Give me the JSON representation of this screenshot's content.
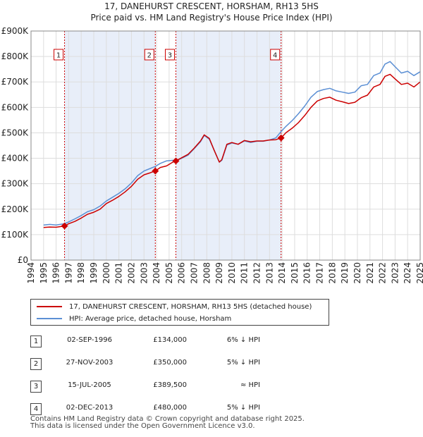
{
  "title_line1": "17, DANEHURST CRESCENT, HORSHAM, RH13 5HS",
  "title_line2": "Price paid vs. HM Land Registry's House Price Index (HPI)",
  "colors": {
    "property": "#cc0000",
    "hpi": "#5b8fd4",
    "shade": "#e8eef9",
    "marker": "#cc0000"
  },
  "chart_data": {
    "type": "line",
    "xlim": [
      1994,
      2025
    ],
    "ylim": [
      0,
      900000
    ],
    "y_ticks": [
      {
        "value": 0,
        "label": "£0"
      },
      {
        "value": 100000,
        "label": "£100K"
      },
      {
        "value": 200000,
        "label": "£200K"
      },
      {
        "value": 300000,
        "label": "£300K"
      },
      {
        "value": 400000,
        "label": "£400K"
      },
      {
        "value": 500000,
        "label": "£500K"
      },
      {
        "value": 600000,
        "label": "£600K"
      },
      {
        "value": 700000,
        "label": "£700K"
      },
      {
        "value": 800000,
        "label": "£800K"
      },
      {
        "value": 900000,
        "label": "£900K"
      }
    ],
    "x_ticks": [
      "1994",
      "1995",
      "1996",
      "1997",
      "1998",
      "1999",
      "2000",
      "2001",
      "2002",
      "2003",
      "2004",
      "2005",
      "2006",
      "2007",
      "2008",
      "2009",
      "2010",
      "2011",
      "2012",
      "2013",
      "2014",
      "2015",
      "2016",
      "2017",
      "2018",
      "2019",
      "2020",
      "2021",
      "2022",
      "2023",
      "2024",
      "2025"
    ],
    "shaded_periods": [
      [
        1996.67,
        2003.9
      ],
      [
        2005.54,
        2013.92
      ]
    ],
    "series": [
      {
        "name": "17, DANEHURST CRESCENT, HORSHAM, RH13 5HS (detached house)",
        "x": [
          1995.0,
          1995.5,
          1996.0,
          1996.67,
          1997.0,
          1997.5,
          1998.0,
          1998.5,
          1999.0,
          1999.5,
          2000.0,
          2000.5,
          2001.0,
          2001.5,
          2002.0,
          2002.5,
          2003.0,
          2003.5,
          2003.9,
          2004.3,
          2004.8,
          2005.3,
          2005.54,
          2006.0,
          2006.5,
          2007.0,
          2007.5,
          2007.8,
          2008.2,
          2008.6,
          2009.0,
          2009.2,
          2009.6,
          2010.0,
          2010.5,
          2011.0,
          2011.5,
          2012.0,
          2012.5,
          2013.0,
          2013.5,
          2013.92,
          2014.3,
          2014.8,
          2015.3,
          2015.8,
          2016.3,
          2016.8,
          2017.3,
          2017.8,
          2018.3,
          2018.8,
          2019.3,
          2019.8,
          2020.3,
          2020.8,
          2021.3,
          2021.8,
          2022.2,
          2022.6,
          2023.0,
          2023.5,
          2024.0,
          2024.5,
          2025.0
        ],
        "y": [
          128000,
          130000,
          129000,
          134000,
          143000,
          152000,
          165000,
          180000,
          188000,
          200000,
          222000,
          235000,
          250000,
          268000,
          290000,
          318000,
          335000,
          343000,
          350000,
          364000,
          370000,
          385000,
          389500,
          402000,
          415000,
          440000,
          468000,
          492000,
          478000,
          430000,
          385000,
          395000,
          455000,
          462000,
          455000,
          470000,
          465000,
          468000,
          468000,
          472000,
          473000,
          480000,
          500000,
          518000,
          540000,
          568000,
          600000,
          625000,
          635000,
          640000,
          628000,
          622000,
          615000,
          620000,
          638000,
          648000,
          680000,
          690000,
          722000,
          730000,
          712000,
          690000,
          695000,
          680000,
          700000
        ]
      },
      {
        "name": "HPI: Average price, detached house, Horsham",
        "x": [
          1995.0,
          1995.5,
          1996.0,
          1996.67,
          1997.0,
          1997.5,
          1998.0,
          1998.5,
          1999.0,
          1999.5,
          2000.0,
          2000.5,
          2001.0,
          2001.5,
          2002.0,
          2002.5,
          2003.0,
          2003.5,
          2003.9,
          2004.3,
          2004.8,
          2005.3,
          2005.54,
          2006.0,
          2006.5,
          2007.0,
          2007.5,
          2007.8,
          2008.2,
          2008.6,
          2009.0,
          2009.2,
          2009.6,
          2010.0,
          2010.5,
          2011.0,
          2011.5,
          2012.0,
          2012.5,
          2013.0,
          2013.5,
          2013.92,
          2014.3,
          2014.8,
          2015.3,
          2015.8,
          2016.3,
          2016.8,
          2017.3,
          2017.8,
          2018.3,
          2018.8,
          2019.3,
          2019.8,
          2020.3,
          2020.8,
          2021.3,
          2021.8,
          2022.2,
          2022.6,
          2023.0,
          2023.5,
          2024.0,
          2024.5,
          2025.0
        ],
        "y": [
          138000,
          140000,
          138000,
          143000,
          150000,
          162000,
          175000,
          190000,
          198000,
          212000,
          232000,
          247000,
          262000,
          280000,
          303000,
          332000,
          350000,
          360000,
          368000,
          380000,
          390000,
          392000,
          390000,
          400000,
          412000,
          438000,
          465000,
          490000,
          475000,
          430000,
          385000,
          392000,
          452000,
          460000,
          455000,
          468000,
          462000,
          467000,
          467000,
          472000,
          480000,
          505000,
          525000,
          548000,
          575000,
          605000,
          640000,
          662000,
          670000,
          675000,
          665000,
          660000,
          655000,
          660000,
          685000,
          690000,
          725000,
          735000,
          770000,
          780000,
          760000,
          735000,
          742000,
          725000,
          740000
        ]
      }
    ],
    "sales": [
      {
        "n": "1",
        "x": 1996.67,
        "y": 134000
      },
      {
        "n": "2",
        "x": 2003.9,
        "y": 350000
      },
      {
        "n": "3",
        "x": 2005.54,
        "y": 389500
      },
      {
        "n": "4",
        "x": 2013.92,
        "y": 480000
      }
    ]
  },
  "legend": {
    "property_label": "17, DANEHURST CRESCENT, HORSHAM, RH13 5HS (detached house)",
    "hpi_label": "HPI: Average price, detached house, Horsham"
  },
  "sales_table": [
    {
      "num": "1",
      "date": "02-SEP-1996",
      "price": "£134,000",
      "hpi": "6% ↓ HPI"
    },
    {
      "num": "2",
      "date": "27-NOV-2003",
      "price": "£350,000",
      "hpi": "5% ↓ HPI"
    },
    {
      "num": "3",
      "date": "15-JUL-2005",
      "price": "£389,500",
      "hpi": "≈ HPI"
    },
    {
      "num": "4",
      "date": "02-DEC-2013",
      "price": "£480,000",
      "hpi": "5% ↓ HPI"
    }
  ],
  "footer": {
    "line1": "Contains HM Land Registry data © Crown copyright and database right 2025.",
    "line2": "This data is licensed under the Open Government Licence v3.0."
  }
}
